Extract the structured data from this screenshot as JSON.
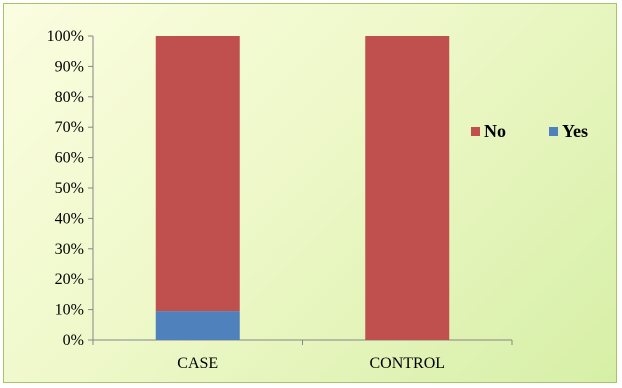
{
  "chart_data": {
    "type": "bar",
    "stacked": true,
    "percent": true,
    "categories": [
      "CASE",
      "CONTROL"
    ],
    "series": [
      {
        "name": "Yes",
        "values": [
          9.5,
          0
        ],
        "color": "#4f81bd"
      },
      {
        "name": "No",
        "values": [
          90.5,
          100
        ],
        "color": "#c0504d"
      }
    ],
    "yticks": [
      "0%",
      "10%",
      "20%",
      "30%",
      "40%",
      "50%",
      "60%",
      "70%",
      "80%",
      "90%",
      "100%"
    ],
    "ylim": [
      0,
      100
    ],
    "grid": false,
    "legend": {
      "position": "right",
      "items": [
        "No",
        "Yes"
      ]
    },
    "title": "",
    "xlabel": "",
    "ylabel": ""
  }
}
